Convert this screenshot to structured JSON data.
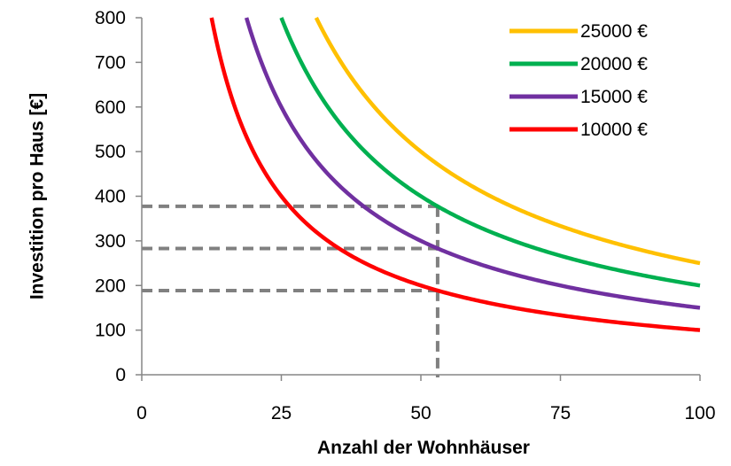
{
  "chart_data": {
    "type": "line",
    "xlabel": "Anzahl der Wohnhäuser",
    "ylabel": "Investition pro Haus [€]",
    "xlim": [
      0,
      100
    ],
    "ylim": [
      0,
      800
    ],
    "x_ticks": [
      0,
      25,
      50,
      75,
      100
    ],
    "y_ticks": [
      0,
      100,
      200,
      300,
      400,
      500,
      600,
      700,
      800
    ],
    "grid": false,
    "legend_position": "top-right",
    "series": [
      {
        "name": "25000 €",
        "color": "#FFC000",
        "total": 25000,
        "x": [
          31.25,
          40,
          50,
          60,
          70,
          80,
          90,
          100
        ],
        "values": [
          800,
          625,
          500,
          416.7,
          357.1,
          312.5,
          277.8,
          250
        ]
      },
      {
        "name": "20000 €",
        "color": "#00B050",
        "total": 20000,
        "x": [
          25,
          30,
          40,
          50,
          60,
          70,
          80,
          90,
          100
        ],
        "values": [
          800,
          666.7,
          500,
          400,
          333.3,
          285.7,
          250,
          222.2,
          200
        ]
      },
      {
        "name": "15000 €",
        "color": "#7030A0",
        "total": 15000,
        "x": [
          18.75,
          25,
          30,
          40,
          50,
          60,
          70,
          80,
          90,
          100
        ],
        "values": [
          800,
          600,
          500,
          375,
          300,
          250,
          214.3,
          187.5,
          166.7,
          150
        ]
      },
      {
        "name": "10000 €",
        "color": "#FF0000",
        "total": 10000,
        "x": [
          12.5,
          15,
          20,
          25,
          30,
          40,
          50,
          60,
          70,
          80,
          90,
          100
        ],
        "values": [
          800,
          666.7,
          500,
          400,
          333.3,
          250,
          200,
          166.7,
          142.9,
          125,
          111.1,
          100
        ]
      }
    ],
    "reference_lines": {
      "color": "#808080",
      "x": 53,
      "y_values": [
        377.4,
        283,
        188.7
      ]
    }
  }
}
